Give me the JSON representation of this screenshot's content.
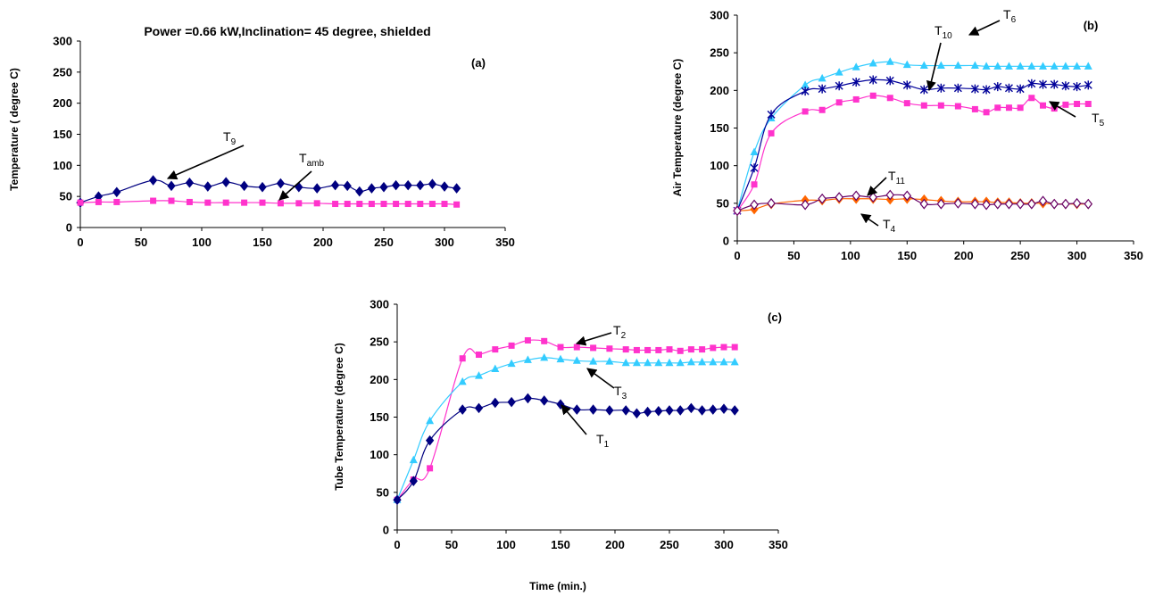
{
  "chart_data": [
    {
      "id": "a",
      "type": "line",
      "panel_label": "(a)",
      "title": "Power =0.66 kW,Inclination= 45 degree, shielded",
      "xlabel": "",
      "ylabel": "Temperature ( degree C)",
      "xlim": [
        0,
        350
      ],
      "ylim": [
        0,
        300
      ],
      "xticks": [
        0,
        50,
        100,
        150,
        200,
        250,
        300,
        350
      ],
      "yticks": [
        0,
        50,
        100,
        150,
        200,
        250,
        300
      ],
      "grid": false,
      "series": [
        {
          "name": "T9",
          "color": "#000080",
          "marker": "diamond",
          "x": [
            0,
            15,
            30,
            60,
            75,
            90,
            105,
            120,
            135,
            150,
            165,
            180,
            195,
            210,
            220,
            230,
            240,
            250,
            260,
            270,
            280,
            290,
            300,
            310
          ],
          "y": [
            40,
            50,
            57,
            76,
            67,
            72,
            66,
            73,
            67,
            65,
            71,
            65,
            63,
            68,
            67,
            58,
            63,
            65,
            68,
            68,
            68,
            70,
            66,
            63
          ]
        },
        {
          "name": "Tamb",
          "color": "#FF33CC",
          "marker": "square",
          "x": [
            0,
            15,
            30,
            60,
            75,
            90,
            105,
            120,
            135,
            150,
            165,
            180,
            195,
            210,
            220,
            230,
            240,
            250,
            260,
            270,
            280,
            290,
            300,
            310
          ],
          "y": [
            40,
            41,
            41,
            43,
            43,
            41,
            40,
            40,
            40,
            40,
            39,
            39,
            39,
            38,
            38,
            38,
            38,
            38,
            38,
            38,
            38,
            38,
            38,
            37
          ]
        }
      ],
      "annotations": [
        {
          "base": "T",
          "sub": "9",
          "series": "T9",
          "x": 60,
          "y": 74
        },
        {
          "base": "T",
          "sub": "amb",
          "series": "Tamb",
          "x": 150,
          "y": 40
        }
      ]
    },
    {
      "id": "b",
      "type": "line",
      "panel_label": "(b)",
      "title": "",
      "xlabel": "",
      "ylabel": "Air Temperature (degree C)",
      "xlim": [
        0,
        350
      ],
      "ylim": [
        0,
        300
      ],
      "xticks": [
        0,
        50,
        100,
        150,
        200,
        250,
        300,
        350
      ],
      "yticks": [
        0,
        50,
        100,
        150,
        200,
        250,
        300
      ],
      "grid": false,
      "series": [
        {
          "name": "T6",
          "color": "#33CCFF",
          "marker": "triangle",
          "x": [
            0,
            15,
            30,
            60,
            75,
            90,
            105,
            120,
            135,
            150,
            165,
            180,
            195,
            210,
            220,
            230,
            240,
            250,
            260,
            270,
            280,
            290,
            300,
            310
          ],
          "y": [
            40,
            118,
            163,
            207,
            216,
            224,
            231,
            236,
            238,
            234,
            233,
            233,
            233,
            233,
            232,
            232,
            232,
            232,
            232,
            232,
            232,
            232,
            232,
            232
          ]
        },
        {
          "name": "T10",
          "color": "#000099",
          "marker": "star",
          "x": [
            0,
            15,
            30,
            60,
            75,
            90,
            105,
            120,
            135,
            150,
            165,
            180,
            195,
            210,
            220,
            230,
            240,
            250,
            260,
            270,
            280,
            290,
            300,
            310
          ],
          "y": [
            40,
            97,
            168,
            199,
            202,
            206,
            211,
            214,
            213,
            207,
            201,
            203,
            203,
            202,
            201,
            205,
            203,
            202,
            209,
            208,
            208,
            206,
            205,
            207
          ]
        },
        {
          "name": "T5",
          "color": "#FF33CC",
          "marker": "square",
          "x": [
            0,
            15,
            30,
            60,
            75,
            90,
            105,
            120,
            135,
            150,
            165,
            180,
            195,
            210,
            220,
            230,
            240,
            250,
            260,
            270,
            280,
            290,
            300,
            310
          ],
          "y": [
            40,
            75,
            143,
            172,
            174,
            184,
            188,
            193,
            190,
            183,
            180,
            180,
            179,
            175,
            171,
            177,
            177,
            177,
            190,
            180,
            176,
            181,
            182,
            182
          ]
        },
        {
          "name": "T4",
          "color": "#FF6600",
          "marker": "diamond",
          "x": [
            0,
            15,
            30,
            60,
            75,
            90,
            105,
            120,
            135,
            150,
            165,
            180,
            195,
            210,
            220,
            230,
            240,
            250,
            260,
            270,
            280,
            290,
            300,
            310
          ],
          "y": [
            40,
            42,
            49,
            54,
            54,
            56,
            56,
            56,
            55,
            56,
            55,
            53,
            52,
            52,
            52,
            51,
            51,
            50,
            50,
            50,
            49,
            49,
            49,
            49
          ]
        },
        {
          "name": "T11",
          "color": "#660066",
          "marker": "diamond-open",
          "x": [
            0,
            15,
            30,
            60,
            75,
            90,
            105,
            120,
            135,
            150,
            165,
            180,
            195,
            210,
            220,
            230,
            240,
            250,
            260,
            270,
            280,
            290,
            300,
            310
          ],
          "y": [
            40,
            48,
            50,
            48,
            56,
            58,
            60,
            58,
            61,
            60,
            49,
            49,
            50,
            49,
            48,
            49,
            49,
            49,
            49,
            53,
            49,
            49,
            50,
            49
          ]
        }
      ],
      "annotations": [
        {
          "base": "T",
          "sub": "10",
          "series": "T10",
          "x": 165,
          "y": 201
        },
        {
          "base": "T",
          "sub": "6",
          "series": "T6",
          "x": 195,
          "y": 233
        },
        {
          "base": "T",
          "sub": "5",
          "series": "T5",
          "x": 120,
          "y": 190
        },
        {
          "base": "T",
          "sub": "11",
          "series": "T11",
          "x": 112,
          "y": 58
        },
        {
          "base": "T",
          "sub": "4",
          "series": "T4",
          "x": 100,
          "y": 56
        }
      ]
    },
    {
      "id": "c",
      "type": "line",
      "panel_label": "(c)",
      "title": "",
      "xlabel": "Time (min.)",
      "ylabel": "Tube Temperature (degree C)",
      "xlim": [
        0,
        350
      ],
      "ylim": [
        0,
        300
      ],
      "xticks": [
        0,
        50,
        100,
        150,
        200,
        250,
        300,
        350
      ],
      "yticks": [
        0,
        50,
        100,
        150,
        200,
        250,
        300
      ],
      "grid": false,
      "series": [
        {
          "name": "T2",
          "color": "#FF33CC",
          "marker": "square",
          "x": [
            0,
            15,
            30,
            60,
            75,
            90,
            105,
            120,
            135,
            150,
            165,
            180,
            195,
            210,
            220,
            230,
            240,
            250,
            260,
            270,
            280,
            290,
            300,
            310
          ],
          "y": [
            40,
            67,
            82,
            228,
            233,
            240,
            245,
            252,
            251,
            243,
            243,
            242,
            241,
            240,
            239,
            239,
            239,
            240,
            238,
            240,
            240,
            242,
            243,
            243
          ]
        },
        {
          "name": "T3",
          "color": "#33CCFF",
          "marker": "triangle",
          "x": [
            0,
            15,
            30,
            60,
            75,
            90,
            105,
            120,
            135,
            150,
            165,
            180,
            195,
            210,
            220,
            230,
            240,
            250,
            260,
            270,
            280,
            290,
            300,
            310
          ],
          "y": [
            40,
            93,
            145,
            197,
            205,
            214,
            221,
            226,
            229,
            227,
            225,
            224,
            224,
            222,
            222,
            222,
            222,
            222,
            222,
            223,
            223,
            223,
            223,
            223
          ]
        },
        {
          "name": "T1",
          "color": "#000080",
          "marker": "diamond",
          "x": [
            0,
            15,
            30,
            60,
            75,
            90,
            105,
            120,
            135,
            150,
            165,
            180,
            195,
            210,
            220,
            230,
            240,
            250,
            260,
            270,
            280,
            290,
            300,
            310
          ],
          "y": [
            40,
            65,
            119,
            160,
            162,
            169,
            170,
            175,
            172,
            167,
            160,
            160,
            159,
            159,
            155,
            157,
            158,
            159,
            159,
            162,
            159,
            160,
            161,
            159
          ]
        }
      ],
      "annotations": [
        {
          "base": "T",
          "sub": "2",
          "series": "T2",
          "x": 165,
          "y": 243
        },
        {
          "base": "T",
          "sub": "3",
          "series": "T3",
          "x": 175,
          "y": 224
        },
        {
          "base": "T",
          "sub": "1",
          "series": "T1",
          "x": 150,
          "y": 167
        }
      ]
    }
  ]
}
